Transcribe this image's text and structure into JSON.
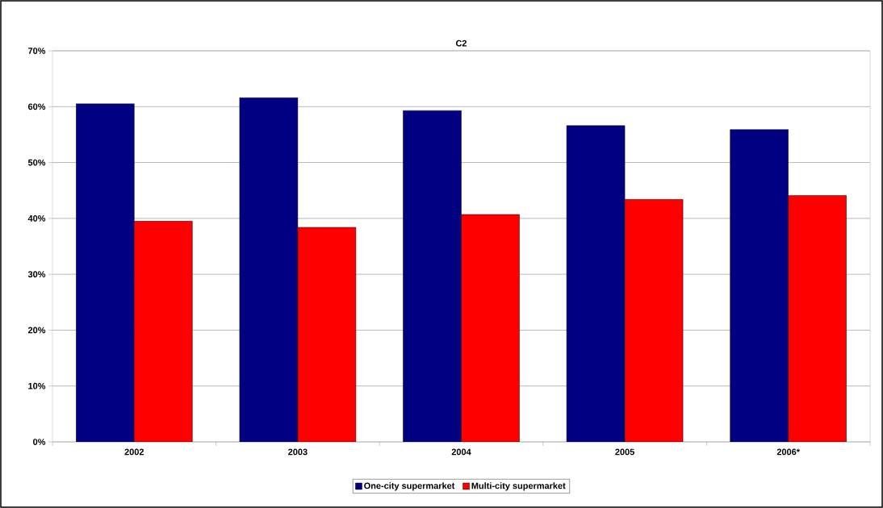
{
  "chart_data": {
    "type": "bar",
    "title": "C2",
    "categories": [
      "2002",
      "2003",
      "2004",
      "2005",
      "2006*"
    ],
    "series": [
      {
        "name": "One-city supermarket",
        "color": "#000080",
        "values": [
          60.5,
          61.6,
          59.3,
          56.6,
          55.9
        ]
      },
      {
        "name": "Multi-city supermarket",
        "color": "#ff0000",
        "values": [
          39.5,
          38.4,
          40.7,
          43.4,
          44.1
        ]
      }
    ],
    "ylim": [
      0,
      70
    ],
    "yticks": [
      {
        "value": 0,
        "label": "0%"
      },
      {
        "value": 10,
        "label": "10%"
      },
      {
        "value": 20,
        "label": "20%"
      },
      {
        "value": 30,
        "label": "30%"
      },
      {
        "value": 40,
        "label": "40%"
      },
      {
        "value": 50,
        "label": "50%"
      },
      {
        "value": 60,
        "label": "60%"
      },
      {
        "value": 70,
        "label": "70%"
      }
    ],
    "grid": "y",
    "legend": "bottom"
  }
}
